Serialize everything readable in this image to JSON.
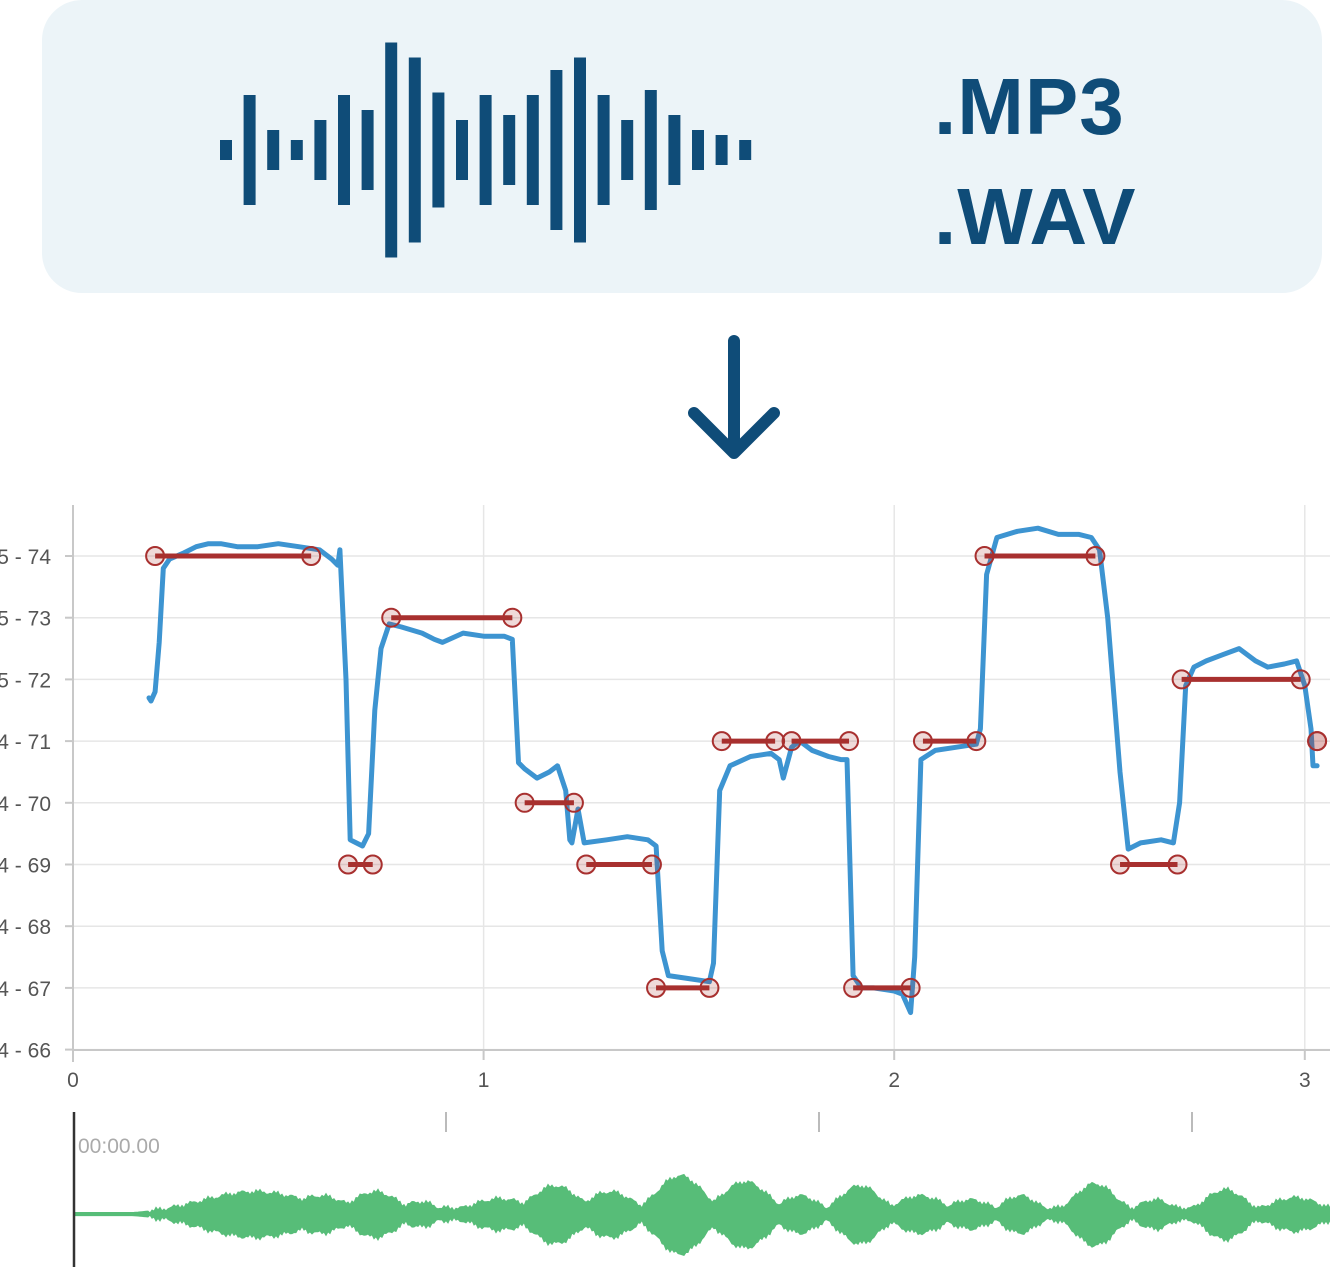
{
  "header": {
    "icons": [
      "audio-waveform-icon",
      "down-arrow-icon"
    ],
    "formats": [
      ".MP3",
      ".WAV"
    ],
    "brand_color": "#0f4c78",
    "card_color": "#ecf4f8"
  },
  "chart_data": {
    "type": "line",
    "title": "",
    "xlabel": "",
    "ylabel": "",
    "xlim": [
      0,
      3.03
    ],
    "ylim": [
      65.85,
      74.8
    ],
    "xticks": [
      {
        "value": 0,
        "label": "0"
      },
      {
        "value": 1,
        "label": "1"
      },
      {
        "value": 2,
        "label": "2"
      },
      {
        "value": 3,
        "label": "3"
      }
    ],
    "yticks": [
      {
        "value": 74,
        "label": "5 - 74"
      },
      {
        "value": 73,
        "label": "5 - 73"
      },
      {
        "value": 72,
        "label": "5 - 72"
      },
      {
        "value": 71,
        "label": "4 - 71"
      },
      {
        "value": 70,
        "label": "4 - 70"
      },
      {
        "value": 69,
        "label": "4 - 69"
      },
      {
        "value": 68,
        "label": "4 - 68"
      },
      {
        "value": 67,
        "label": "4 - 67"
      },
      {
        "value": 66,
        "label": "4 - 66"
      }
    ],
    "grid": true,
    "series": [
      {
        "kind": "pitch-curve",
        "color": "#3d94d1",
        "points": [
          [
            0.185,
            71.7
          ],
          [
            0.19,
            71.65
          ],
          [
            0.2,
            71.8
          ],
          [
            0.21,
            72.6
          ],
          [
            0.22,
            73.8
          ],
          [
            0.235,
            73.95
          ],
          [
            0.27,
            74.05
          ],
          [
            0.3,
            74.15
          ],
          [
            0.33,
            74.2
          ],
          [
            0.36,
            74.2
          ],
          [
            0.4,
            74.15
          ],
          [
            0.45,
            74.15
          ],
          [
            0.5,
            74.2
          ],
          [
            0.55,
            74.15
          ],
          [
            0.6,
            74.1
          ],
          [
            0.63,
            73.95
          ],
          [
            0.645,
            73.85
          ],
          [
            0.65,
            74.1
          ],
          [
            0.665,
            72.0
          ],
          [
            0.675,
            69.4
          ],
          [
            0.69,
            69.35
          ],
          [
            0.705,
            69.3
          ],
          [
            0.72,
            69.5
          ],
          [
            0.735,
            71.5
          ],
          [
            0.75,
            72.5
          ],
          [
            0.77,
            72.9
          ],
          [
            0.8,
            72.85
          ],
          [
            0.85,
            72.75
          ],
          [
            0.88,
            72.65
          ],
          [
            0.9,
            72.6
          ],
          [
            0.95,
            72.75
          ],
          [
            1.0,
            72.7
          ],
          [
            1.05,
            72.7
          ],
          [
            1.07,
            72.65
          ],
          [
            1.085,
            70.65
          ],
          [
            1.1,
            70.55
          ],
          [
            1.13,
            70.4
          ],
          [
            1.16,
            70.5
          ],
          [
            1.18,
            70.6
          ],
          [
            1.2,
            70.2
          ],
          [
            1.21,
            69.4
          ],
          [
            1.215,
            69.35
          ],
          [
            1.23,
            69.9
          ],
          [
            1.245,
            69.35
          ],
          [
            1.3,
            69.4
          ],
          [
            1.35,
            69.45
          ],
          [
            1.4,
            69.4
          ],
          [
            1.42,
            69.3
          ],
          [
            1.435,
            67.6
          ],
          [
            1.45,
            67.2
          ],
          [
            1.5,
            67.15
          ],
          [
            1.55,
            67.1
          ],
          [
            1.56,
            67.4
          ],
          [
            1.575,
            70.2
          ],
          [
            1.6,
            70.6
          ],
          [
            1.65,
            70.75
          ],
          [
            1.7,
            70.8
          ],
          [
            1.72,
            70.7
          ],
          [
            1.73,
            70.4
          ],
          [
            1.75,
            70.9
          ],
          [
            1.77,
            71.0
          ],
          [
            1.8,
            70.85
          ],
          [
            1.84,
            70.75
          ],
          [
            1.87,
            70.7
          ],
          [
            1.885,
            70.7
          ],
          [
            1.9,
            67.2
          ],
          [
            1.92,
            67.0
          ],
          [
            1.95,
            67.0
          ],
          [
            2.0,
            66.95
          ],
          [
            2.02,
            66.9
          ],
          [
            2.04,
            66.6
          ],
          [
            2.05,
            67.5
          ],
          [
            2.065,
            70.7
          ],
          [
            2.1,
            70.85
          ],
          [
            2.15,
            70.9
          ],
          [
            2.2,
            70.95
          ],
          [
            2.21,
            71.2
          ],
          [
            2.225,
            73.7
          ],
          [
            2.25,
            74.3
          ],
          [
            2.3,
            74.4
          ],
          [
            2.35,
            74.45
          ],
          [
            2.4,
            74.35
          ],
          [
            2.45,
            74.35
          ],
          [
            2.48,
            74.3
          ],
          [
            2.5,
            74.1
          ],
          [
            2.52,
            73.0
          ],
          [
            2.55,
            70.5
          ],
          [
            2.57,
            69.25
          ],
          [
            2.6,
            69.35
          ],
          [
            2.65,
            69.4
          ],
          [
            2.68,
            69.35
          ],
          [
            2.695,
            70.0
          ],
          [
            2.71,
            71.9
          ],
          [
            2.73,
            72.2
          ],
          [
            2.76,
            72.3
          ],
          [
            2.8,
            72.4
          ],
          [
            2.84,
            72.5
          ],
          [
            2.88,
            72.3
          ],
          [
            2.91,
            72.2
          ],
          [
            2.95,
            72.25
          ],
          [
            2.98,
            72.3
          ],
          [
            3.0,
            71.9
          ],
          [
            3.015,
            71.2
          ],
          [
            3.02,
            70.6
          ],
          [
            3.03,
            70.6
          ]
        ]
      },
      {
        "kind": "note-segments",
        "color": "#a8302f",
        "segments": [
          {
            "x0": 0.2,
            "x1": 0.58,
            "y": 74
          },
          {
            "x0": 0.775,
            "x1": 1.07,
            "y": 73
          },
          {
            "x0": 0.67,
            "x1": 0.73,
            "y": 69
          },
          {
            "x0": 1.1,
            "x1": 1.22,
            "y": 70
          },
          {
            "x0": 1.25,
            "x1": 1.41,
            "y": 69
          },
          {
            "x0": 1.42,
            "x1": 1.55,
            "y": 67
          },
          {
            "x0": 1.58,
            "x1": 1.71,
            "y": 71
          },
          {
            "x0": 1.75,
            "x1": 1.89,
            "y": 71
          },
          {
            "x0": 1.9,
            "x1": 2.04,
            "y": 67
          },
          {
            "x0": 2.07,
            "x1": 2.2,
            "y": 71
          },
          {
            "x0": 2.22,
            "x1": 2.49,
            "y": 74
          },
          {
            "x0": 2.55,
            "x1": 2.69,
            "y": 69
          },
          {
            "x0": 2.7,
            "x1": 2.99,
            "y": 72
          },
          {
            "x0": 3.03,
            "x1": 3.03,
            "y": 71
          }
        ]
      }
    ]
  },
  "waveform": {
    "time_label": "00:00.00",
    "color": "#57bd78",
    "cursor_color": "#333333",
    "timeline_marks": 3
  }
}
